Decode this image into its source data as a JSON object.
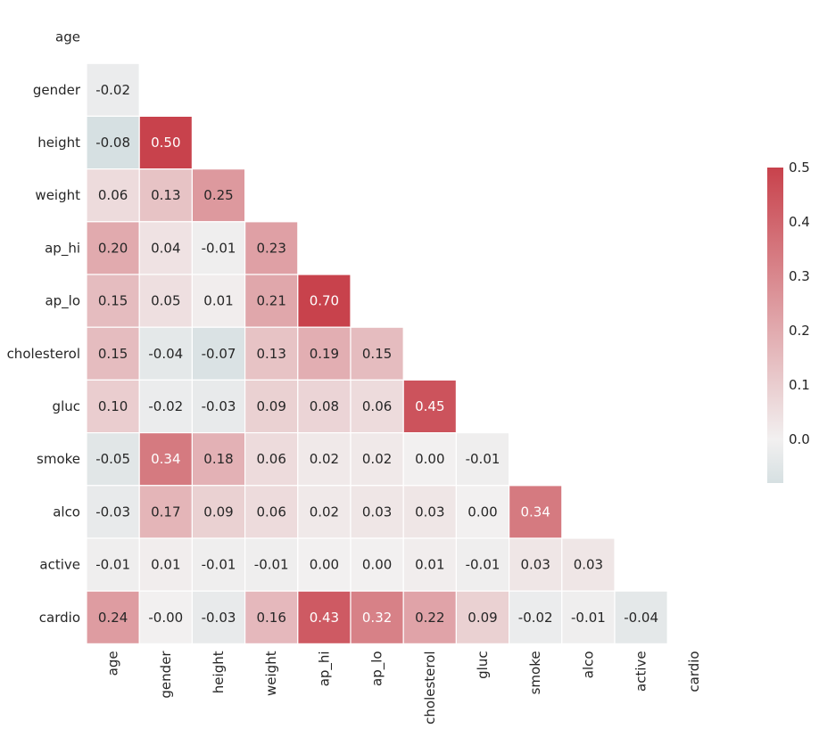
{
  "chart_data": {
    "type": "heatmap",
    "title": "",
    "variables": [
      "age",
      "gender",
      "height",
      "weight",
      "ap_hi",
      "ap_lo",
      "cholesterol",
      "gluc",
      "smoke",
      "alco",
      "active",
      "cardio"
    ],
    "lower_triangle": [
      [],
      [
        -0.02
      ],
      [
        -0.08,
        0.5
      ],
      [
        0.06,
        0.13,
        0.25
      ],
      [
        0.2,
        0.04,
        -0.01,
        0.23
      ],
      [
        0.15,
        0.05,
        0.01,
        0.21,
        0.7
      ],
      [
        0.15,
        -0.04,
        -0.07,
        0.13,
        0.19,
        0.15
      ],
      [
        0.1,
        -0.02,
        -0.03,
        0.09,
        0.08,
        0.06,
        0.45
      ],
      [
        -0.05,
        0.34,
        0.18,
        0.06,
        0.02,
        0.02,
        0.0,
        -0.01
      ],
      [
        -0.03,
        0.17,
        0.09,
        0.06,
        0.02,
        0.03,
        0.03,
        0.0,
        0.34
      ],
      [
        -0.01,
        0.01,
        -0.01,
        -0.01,
        0.0,
        0.0,
        0.01,
        -0.01,
        0.03,
        0.03
      ],
      [
        0.24,
        -0.0,
        -0.03,
        0.16,
        0.43,
        0.32,
        0.22,
        0.09,
        -0.02,
        -0.01,
        -0.04
      ]
    ],
    "display_labels": [
      [],
      [
        "-0.02"
      ],
      [
        "-0.08",
        "0.50"
      ],
      [
        "0.06",
        "0.13",
        "0.25"
      ],
      [
        "0.20",
        "0.04",
        "-0.01",
        "0.23"
      ],
      [
        "0.15",
        "0.05",
        "0.01",
        "0.21",
        "0.70"
      ],
      [
        "0.15",
        "-0.04",
        "-0.07",
        "0.13",
        "0.19",
        "0.15"
      ],
      [
        "0.10",
        "-0.02",
        "-0.03",
        "0.09",
        "0.08",
        "0.06",
        "0.45"
      ],
      [
        "-0.05",
        "0.34",
        "0.18",
        "0.06",
        "0.02",
        "0.02",
        "0.00",
        "-0.01"
      ],
      [
        "-0.03",
        "0.17",
        "0.09",
        "0.06",
        "0.02",
        "0.03",
        "0.03",
        "0.00",
        "0.34"
      ],
      [
        "-0.01",
        "0.01",
        "-0.01",
        "-0.01",
        "0.00",
        "0.00",
        "0.01",
        "-0.01",
        "0.03",
        "0.03"
      ],
      [
        "0.24",
        "-0.00",
        "-0.03",
        "0.16",
        "0.43",
        "0.32",
        "0.22",
        "0.09",
        "-0.02",
        "-0.01",
        "-0.04"
      ]
    ],
    "colorbar": {
      "vmin": -0.08,
      "vmax": 0.5,
      "ticks": [
        "0.0",
        "0.1",
        "0.2",
        "0.3",
        "0.4",
        "0.5"
      ]
    },
    "colors": {
      "negative": "#d6e0e2",
      "center": "#f2f0f0",
      "positive": "#c8424c",
      "text_dark": "#262626",
      "text_light": "#ffffff"
    }
  }
}
